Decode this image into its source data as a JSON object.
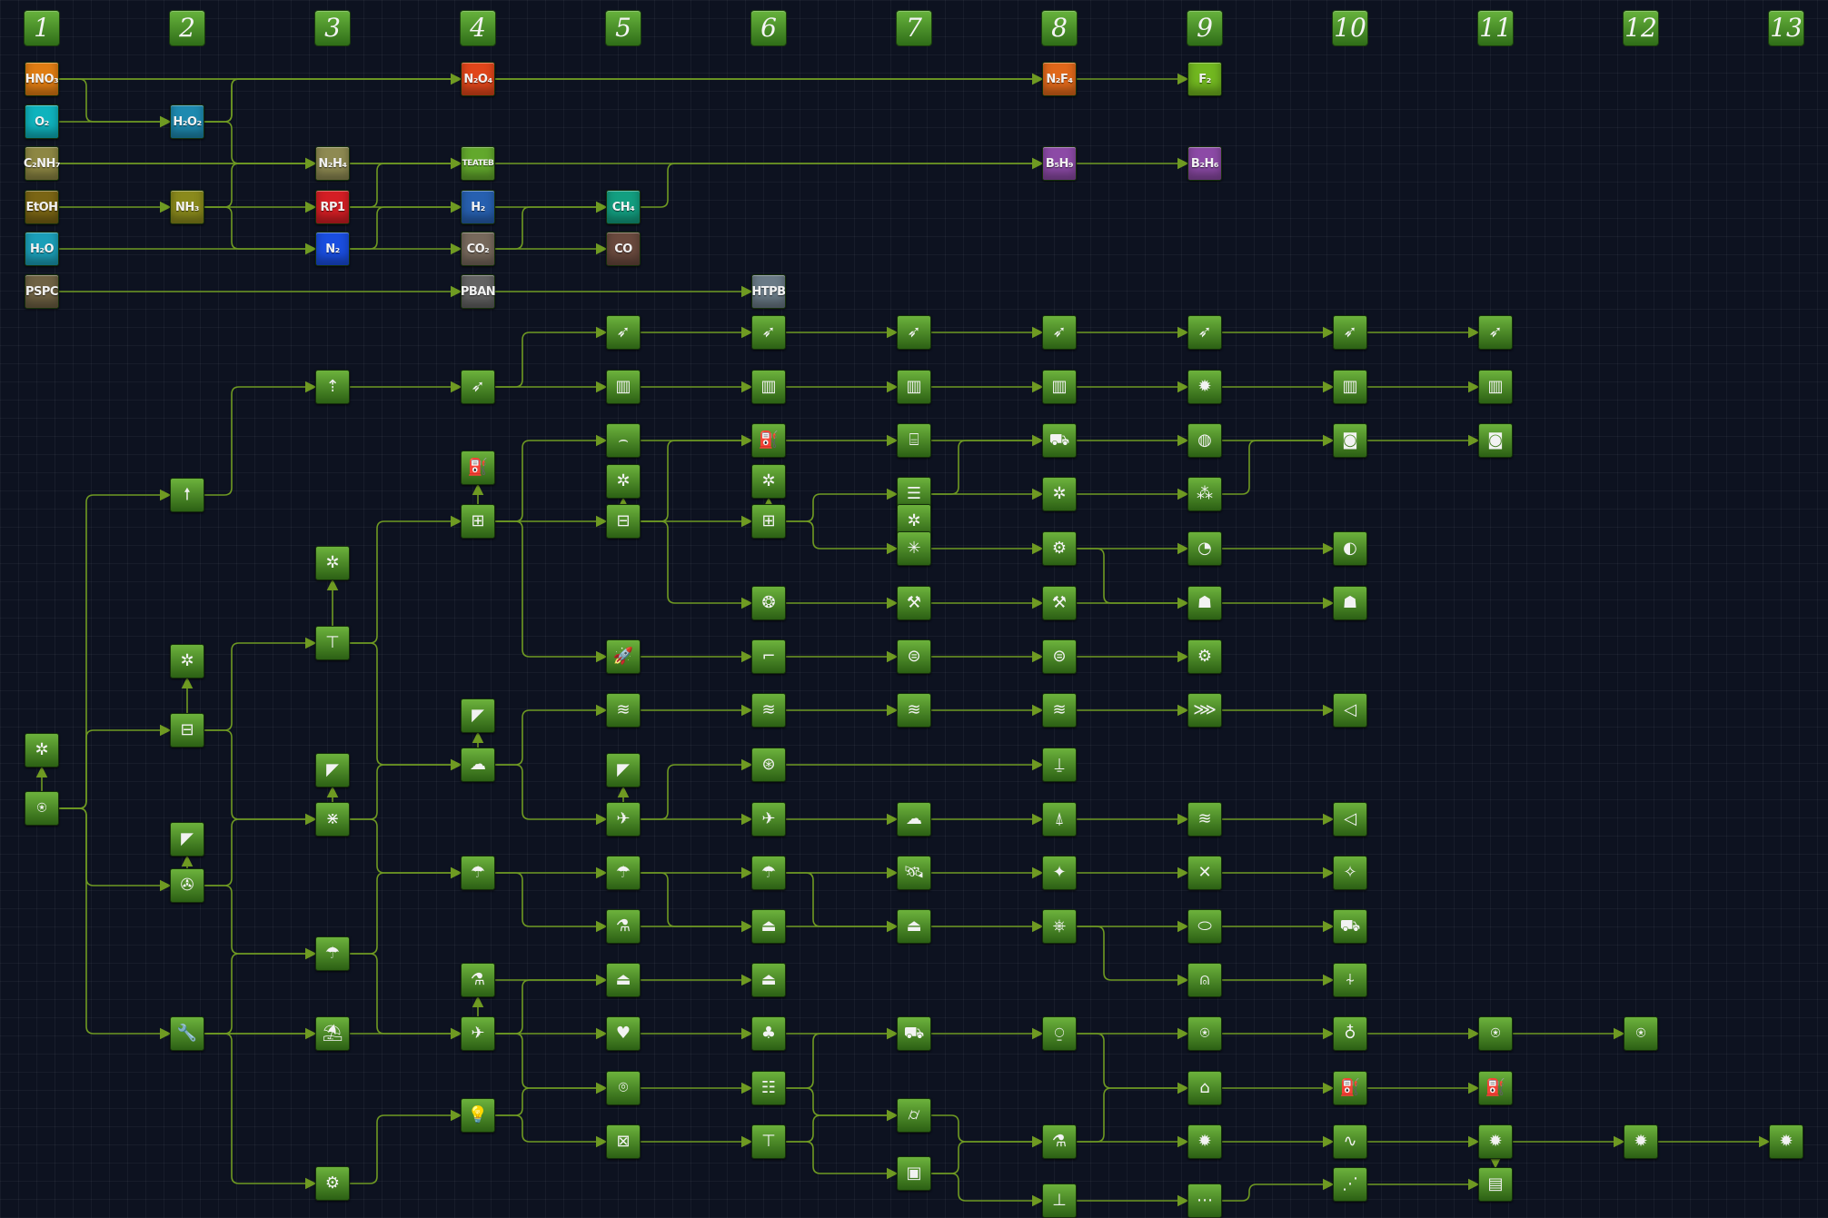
{
  "columns": [
    "1",
    "2",
    "3",
    "4",
    "5",
    "6",
    "7",
    "8",
    "9",
    "10",
    "11",
    "12",
    "13"
  ],
  "colors": {
    "background": "#0d1220",
    "link": "#6f9a22",
    "node": "#4e9226",
    "column_header": "#56a32f"
  },
  "resources": [
    {
      "id": "hno3",
      "label": "HNO₃",
      "color": "#e07d13"
    },
    {
      "id": "o2",
      "label": "O₂",
      "color": "#0fb3bd"
    },
    {
      "id": "cnh",
      "label": "C₂NH₇",
      "color": "#8d8743"
    },
    {
      "id": "etoh",
      "label": "EtOH",
      "color": "#7a6514"
    },
    {
      "id": "h2o",
      "label": "H₂O",
      "color": "#1b9fb8"
    },
    {
      "id": "pspc",
      "label": "PSPC",
      "color": "#6f6244"
    },
    {
      "id": "h2o2",
      "label": "H₂O₂",
      "color": "#1e8ab0"
    },
    {
      "id": "nh3",
      "label": "NH₃",
      "color": "#8a8a1c"
    },
    {
      "id": "n2h4",
      "label": "N₂H₄",
      "color": "#8e8a52"
    },
    {
      "id": "rp1",
      "label": "RP1",
      "color": "#d41e24"
    },
    {
      "id": "n2",
      "label": "N₂",
      "color": "#1a4ee0"
    },
    {
      "id": "n2o4",
      "label": "N₂O₄",
      "color": "#e0461a"
    },
    {
      "id": "teateb",
      "label": "TEATEB",
      "color": "#62a82c"
    },
    {
      "id": "h2",
      "label": "H₂",
      "color": "#2760b0"
    },
    {
      "id": "co2",
      "label": "CO₂",
      "color": "#77695c"
    },
    {
      "id": "pban",
      "label": "PBAN",
      "color": "#636363"
    },
    {
      "id": "ch4",
      "label": "CH₄",
      "color": "#139f80"
    },
    {
      "id": "co",
      "label": "CO",
      "color": "#6a4a3e"
    },
    {
      "id": "htpb",
      "label": "HTPB",
      "color": "#6a7a86"
    },
    {
      "id": "n2f4",
      "label": "N₂F₄",
      "color": "#e0681a"
    },
    {
      "id": "b5h9",
      "label": "B₅H₉",
      "color": "#8c4aa6"
    },
    {
      "id": "f2",
      "label": "F₂",
      "color": "#72b820"
    },
    {
      "id": "b2h6",
      "label": "B₂H₆",
      "color": "#8c4aa6"
    }
  ],
  "tech_nodes": [
    {
      "id": "t1_net",
      "icon": "network-icon",
      "glyph": "✲"
    },
    {
      "id": "t1_start",
      "icon": "start-icon",
      "glyph": "⍟"
    },
    {
      "id": "t2_rocket",
      "icon": "rocket-icon",
      "glyph": "🠕"
    },
    {
      "id": "t2_net",
      "icon": "network-icon",
      "glyph": "✲"
    },
    {
      "id": "t2_flow",
      "icon": "flowchart-icon",
      "glyph": "⊟"
    },
    {
      "id": "t2_dish",
      "icon": "dish-icon",
      "glyph": "◤"
    },
    {
      "id": "t2_fan",
      "icon": "fan-icon",
      "glyph": "✇"
    },
    {
      "id": "t2_wrench",
      "icon": "wrench-icon",
      "glyph": "🔧"
    },
    {
      "id": "t3_rocket",
      "icon": "rocket-icon",
      "glyph": "⇡"
    },
    {
      "id": "t3_net",
      "icon": "network-icon",
      "glyph": "✲"
    },
    {
      "id": "t3_caliper",
      "icon": "caliper-icon",
      "glyph": "⊤"
    },
    {
      "id": "t3_dish",
      "icon": "dish-icon",
      "glyph": "◤"
    },
    {
      "id": "t3_runway",
      "icon": "runway-icon",
      "glyph": "⋇"
    },
    {
      "id": "t3_chute",
      "icon": "chute-icon",
      "glyph": "☂"
    },
    {
      "id": "t3_parachute",
      "icon": "parachute-icon",
      "glyph": "⛱"
    },
    {
      "id": "t3_gear",
      "icon": "gear-icon",
      "glyph": "⚙"
    },
    {
      "id": "t4_missile",
      "icon": "missile-icon",
      "glyph": "➶"
    },
    {
      "id": "t4_fuel",
      "icon": "fuel-pump-icon",
      "glyph": "⛽"
    },
    {
      "id": "t4_stack",
      "icon": "stack-icon",
      "glyph": "⊞"
    },
    {
      "id": "t4_dish",
      "icon": "dish-icon",
      "glyph": "◤"
    },
    {
      "id": "t4_cloud",
      "icon": "cloud-icon",
      "glyph": "☁"
    },
    {
      "id": "t4_chute",
      "icon": "chute-icon",
      "glyph": "☂"
    },
    {
      "id": "t4_flask",
      "icon": "flask-icon",
      "glyph": "⚗"
    },
    {
      "id": "t4_lander",
      "icon": "lander-icon",
      "glyph": "✈"
    },
    {
      "id": "t4_bulb",
      "icon": "bulb-icon",
      "glyph": "💡"
    },
    {
      "id": "t5_missile",
      "icon": "missile-icon",
      "glyph": "➶"
    },
    {
      "id": "t5_tower",
      "icon": "tower-icon",
      "glyph": "▥"
    },
    {
      "id": "t5_nozzle",
      "icon": "nozzle-icon",
      "glyph": "⌢"
    },
    {
      "id": "t5_net",
      "icon": "network-icon",
      "glyph": "✲"
    },
    {
      "id": "t5_flow",
      "icon": "flowchart-icon",
      "glyph": "⊟"
    },
    {
      "id": "t5_rocket",
      "icon": "rocket-icon",
      "glyph": "🚀"
    },
    {
      "id": "t5_wind",
      "icon": "wind-icon",
      "glyph": "≋"
    },
    {
      "id": "t5_dish",
      "icon": "dish-icon",
      "glyph": "◤"
    },
    {
      "id": "t5_plane",
      "icon": "plane-icon",
      "glyph": "✈"
    },
    {
      "id": "t5_chute",
      "icon": "chute-icon",
      "glyph": "☂"
    },
    {
      "id": "t5_flask",
      "icon": "flask-icon",
      "glyph": "⚗"
    },
    {
      "id": "t5_capsule",
      "icon": "capsule-icon",
      "glyph": "⏏"
    },
    {
      "id": "t5_heart",
      "icon": "heart-icon",
      "glyph": "♥"
    },
    {
      "id": "t5_pod",
      "icon": "pod-icon",
      "glyph": "⌾"
    },
    {
      "id": "t5_box",
      "icon": "box-icon",
      "glyph": "⊠"
    },
    {
      "id": "t6_missile",
      "icon": "missile-icon",
      "glyph": "➶"
    },
    {
      "id": "t6_tower",
      "icon": "tower-icon",
      "glyph": "▥"
    },
    {
      "id": "t6_fuel",
      "icon": "fuel-pump-icon",
      "glyph": "⛽"
    },
    {
      "id": "t6_net",
      "icon": "network-icon",
      "glyph": "✲"
    },
    {
      "id": "t6_flow",
      "icon": "flowchart-icon",
      "glyph": "⊞"
    },
    {
      "id": "t6_orb",
      "icon": "orb-icon",
      "glyph": "❂"
    },
    {
      "id": "t6_gun",
      "icon": "gun-icon",
      "glyph": "⌐"
    },
    {
      "id": "t6_wind",
      "icon": "wind-icon",
      "glyph": "≋"
    },
    {
      "id": "t6_turbine",
      "icon": "turbine-icon",
      "glyph": "⊛"
    },
    {
      "id": "t6_plane",
      "icon": "plane-icon",
      "glyph": "✈"
    },
    {
      "id": "t6_chute",
      "icon": "chute-icon",
      "glyph": "☂"
    },
    {
      "id": "t6_capsule",
      "icon": "capsule-icon",
      "glyph": "⏏"
    },
    {
      "id": "t6_capsule2",
      "icon": "capsule-icon",
      "glyph": "⏏"
    },
    {
      "id": "t6_sprout",
      "icon": "sprout-icon",
      "glyph": "♣"
    },
    {
      "id": "t6_ladder",
      "icon": "ladder-icon",
      "glyph": "☷"
    },
    {
      "id": "t6_caliper",
      "icon": "caliper-icon",
      "glyph": "⊤"
    },
    {
      "id": "t7_missile",
      "icon": "missile-icon",
      "glyph": "➶"
    },
    {
      "id": "t7_tower",
      "icon": "tower-icon",
      "glyph": "▥"
    },
    {
      "id": "t7_tank",
      "icon": "tank-icon",
      "glyph": "⌸"
    },
    {
      "id": "t7_layers",
      "icon": "layers-icon",
      "glyph": "☰"
    },
    {
      "id": "t7_net",
      "icon": "network-icon",
      "glyph": "✲"
    },
    {
      "id": "t7_spark",
      "icon": "spark-icon",
      "glyph": "✳"
    },
    {
      "id": "t7_arm",
      "icon": "robot-arm-icon",
      "glyph": "⚒"
    },
    {
      "id": "t7_engine",
      "icon": "engine-icon",
      "glyph": "⊜"
    },
    {
      "id": "t7_wind",
      "icon": "wind-icon",
      "glyph": "≋"
    },
    {
      "id": "t7_cloud",
      "icon": "cloud-icon",
      "glyph": "☁"
    },
    {
      "id": "t7_satellite",
      "icon": "satellite-icon",
      "glyph": "🛰"
    },
    {
      "id": "t7_capsule",
      "icon": "capsule-icon",
      "glyph": "⏏"
    },
    {
      "id": "t7_truck",
      "icon": "truck-icon",
      "glyph": "⛟"
    },
    {
      "id": "t7_telescope",
      "icon": "telescope-icon",
      "glyph": "⌭"
    },
    {
      "id": "t7_chip",
      "icon": "chip-icon",
      "glyph": "▣"
    },
    {
      "id": "t8_missile",
      "icon": "missile-icon",
      "glyph": "➶"
    },
    {
      "id": "t8_tower",
      "icon": "tower-icon",
      "glyph": "▥"
    },
    {
      "id": "t8_truck",
      "icon": "truck-icon",
      "glyph": "⛟"
    },
    {
      "id": "t8_net",
      "icon": "network-icon",
      "glyph": "✲"
    },
    {
      "id": "t8_gears",
      "icon": "gears-icon",
      "glyph": "⚙"
    },
    {
      "id": "t8_arm",
      "icon": "robot-arm-icon",
      "glyph": "⚒"
    },
    {
      "id": "t8_engine",
      "icon": "engine-icon",
      "glyph": "⊜"
    },
    {
      "id": "t8_wind",
      "icon": "wind-icon",
      "glyph": "≋"
    },
    {
      "id": "t8_landing",
      "icon": "landing-icon",
      "glyph": "⍊"
    },
    {
      "id": "t8_shuttle",
      "icon": "shuttle-icon",
      "glyph": "⍋"
    },
    {
      "id": "t8_star",
      "icon": "star-icon",
      "glyph": "✦"
    },
    {
      "id": "t8_wheel",
      "icon": "wheel-icon",
      "glyph": "⎈"
    },
    {
      "id": "t8_probe",
      "icon": "probe-icon",
      "glyph": "⍜"
    },
    {
      "id": "t8_flask",
      "icon": "flask-icon",
      "glyph": "⚗"
    },
    {
      "id": "t8_bottom",
      "icon": "antenna-icon",
      "glyph": "⊥"
    },
    {
      "id": "t9_missile",
      "icon": "missile-icon",
      "glyph": "➶"
    },
    {
      "id": "t9_burst",
      "icon": "burst-icon",
      "glyph": "✹"
    },
    {
      "id": "t9_globe",
      "icon": "globe-icon",
      "glyph": "◍"
    },
    {
      "id": "t9_cluster",
      "icon": "cluster-icon",
      "glyph": "⁂"
    },
    {
      "id": "t9_gauge",
      "icon": "gauge-icon",
      "glyph": "◔"
    },
    {
      "id": "t9_robot",
      "icon": "robot-icon",
      "glyph": "☗"
    },
    {
      "id": "t9_gears",
      "icon": "gears-icon",
      "glyph": "⚙"
    },
    {
      "id": "t9_wing",
      "icon": "wing-icon",
      "glyph": "⋙"
    },
    {
      "id": "t9_wind",
      "icon": "wind-icon",
      "glyph": "≋"
    },
    {
      "id": "t9_cross",
      "icon": "cross-icon",
      "glyph": "✕"
    },
    {
      "id": "t9_pod",
      "icon": "pod-icon",
      "glyph": "⬭"
    },
    {
      "id": "t9_lander",
      "icon": "lander-icon",
      "glyph": "⍝"
    },
    {
      "id": "t9_beacon",
      "icon": "beacon-icon",
      "glyph": "⍟"
    },
    {
      "id": "t9_hab",
      "icon": "habitat-icon",
      "glyph": "⌂"
    },
    {
      "id": "t9_burst2",
      "icon": "burst-icon",
      "glyph": "✹"
    },
    {
      "id": "t9_bottom",
      "icon": "network-icon",
      "glyph": "⋯"
    },
    {
      "id": "t10_missile",
      "icon": "missile-icon",
      "glyph": "➶"
    },
    {
      "id": "t10_tower",
      "icon": "tower-icon",
      "glyph": "▥"
    },
    {
      "id": "t10_camera",
      "icon": "camera-icon",
      "glyph": "◙"
    },
    {
      "id": "t10_dome",
      "icon": "dome-icon",
      "glyph": "◐"
    },
    {
      "id": "t10_robot",
      "icon": "robot-icon",
      "glyph": "☗"
    },
    {
      "id": "t10_horn",
      "icon": "horn-icon",
      "glyph": "◁"
    },
    {
      "id": "t10_cone",
      "icon": "cone-icon",
      "glyph": "◁"
    },
    {
      "id": "t10_cross",
      "icon": "cross-icon",
      "glyph": "✧"
    },
    {
      "id": "t10_truck",
      "icon": "truck-icon",
      "glyph": "⛟"
    },
    {
      "id": "t10_ufo",
      "icon": "ufo-icon",
      "glyph": "⍭"
    },
    {
      "id": "t10_planet",
      "icon": "planet-icon",
      "glyph": "♁"
    },
    {
      "id": "t10_fuel",
      "icon": "fuel-pump-icon",
      "glyph": "⛽"
    },
    {
      "id": "t10_signal",
      "icon": "signal-icon",
      "glyph": "∿"
    },
    {
      "id": "t10_bottom",
      "icon": "grid-icon",
      "glyph": "⋰"
    },
    {
      "id": "t11_missile",
      "icon": "missile-icon",
      "glyph": "➶"
    },
    {
      "id": "t11_tower",
      "icon": "tower-icon",
      "glyph": "▥"
    },
    {
      "id": "t11_camera",
      "icon": "camera-icon",
      "glyph": "◙"
    },
    {
      "id": "t11_beacon",
      "icon": "beacon-icon",
      "glyph": "⍟"
    },
    {
      "id": "t11_fuel",
      "icon": "fuel-pump-icon",
      "glyph": "⛽"
    },
    {
      "id": "t11_burst",
      "icon": "burst-icon",
      "glyph": "✹"
    },
    {
      "id": "t11_bottom",
      "icon": "battery-icon",
      "glyph": "▤"
    },
    {
      "id": "t12_beacon",
      "icon": "beacon-icon",
      "glyph": "⍟"
    },
    {
      "id": "t12_burst",
      "icon": "burst-icon",
      "glyph": "✹"
    },
    {
      "id": "t13_burst",
      "icon": "burst-icon",
      "glyph": "✹"
    }
  ]
}
